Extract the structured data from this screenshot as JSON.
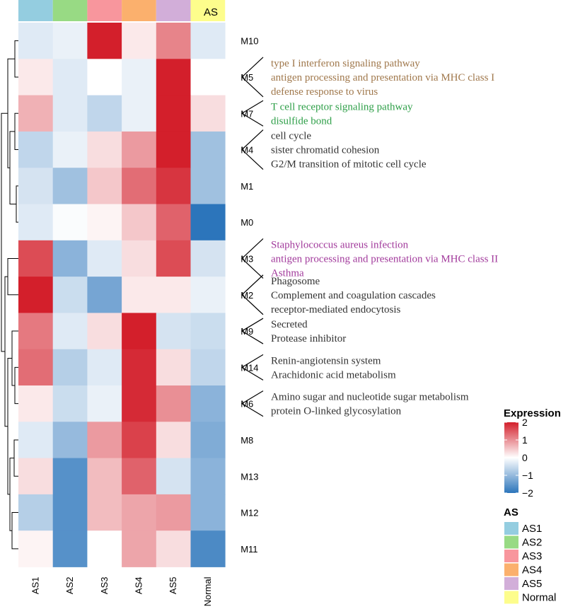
{
  "chart_data": {
    "type": "heatmap",
    "columns": [
      "AS1",
      "AS2",
      "AS3",
      "AS4",
      "AS5",
      "Normal"
    ],
    "rows": [
      "M10",
      "M5",
      "M7",
      "M4",
      "M1",
      "M0",
      "M3",
      "M2",
      "M9",
      "M14",
      "M6",
      "M8",
      "M13",
      "M12",
      "M11"
    ],
    "values": [
      [
        -0.3,
        -0.2,
        2.0,
        0.2,
        1.1,
        -0.3
      ],
      [
        0.2,
        -0.3,
        0.0,
        -0.2,
        2.1,
        0.0
      ],
      [
        0.7,
        -0.3,
        -0.6,
        -0.2,
        2.1,
        0.3
      ],
      [
        -0.6,
        -0.2,
        0.3,
        0.9,
        2.1,
        -0.9
      ],
      [
        -0.4,
        -0.9,
        0.5,
        1.3,
        1.8,
        -0.9
      ],
      [
        -0.3,
        -0.05,
        0.1,
        0.5,
        1.4,
        -2.1
      ],
      [
        1.6,
        -1.1,
        -0.3,
        0.3,
        1.6,
        -0.4
      ],
      [
        2.0,
        -0.5,
        -1.3,
        0.2,
        0.2,
        -0.2
      ],
      [
        1.2,
        -0.3,
        0.3,
        2.0,
        -0.4,
        -0.5
      ],
      [
        1.3,
        -0.7,
        -0.3,
        1.9,
        0.3,
        -0.6
      ],
      [
        0.2,
        -0.5,
        -0.2,
        1.9,
        1.0,
        -1.1
      ],
      [
        -0.3,
        -1.0,
        0.9,
        1.7,
        0.3,
        -1.2
      ],
      [
        0.3,
        -1.6,
        0.6,
        1.4,
        -0.4,
        -1.1
      ],
      [
        -0.7,
        -1.6,
        0.6,
        0.8,
        0.9,
        -1.1
      ],
      [
        0.1,
        -1.6,
        0.0,
        0.8,
        0.3,
        -1.7
      ]
    ],
    "legend": {
      "title": "Expression",
      "range": [
        -2,
        2
      ],
      "ticks": [
        {
          "value": 2,
          "label": "2"
        },
        {
          "value": 1,
          "label": "1"
        },
        {
          "value": 0,
          "label": "0"
        },
        {
          "value": -1,
          "label": "−1"
        },
        {
          "value": -2,
          "label": "−2"
        }
      ]
    },
    "annotation": {
      "title": "AS",
      "groups": [
        {
          "label": "AS1",
          "color": "#94cde0"
        },
        {
          "label": "AS2",
          "color": "#98da84"
        },
        {
          "label": "AS3",
          "color": "#f8969d"
        },
        {
          "label": "AS4",
          "color": "#fbb06d"
        },
        {
          "label": "AS5",
          "color": "#d2aed9"
        },
        {
          "label": "Normal",
          "color": "#fdfd8c"
        }
      ]
    },
    "module_terms": [
      {
        "module": "M5",
        "color": "#a0784c",
        "terms": [
          "type I interferon signaling pathway",
          "antigen processing and presentation via MHC class I",
          "defense response to virus"
        ]
      },
      {
        "module": "M7",
        "color": "#2e9f48",
        "terms": [
          "T cell receptor signaling pathway",
          "disulfide bond"
        ]
      },
      {
        "module": "M4",
        "color": "#333333",
        "terms": [
          "cell cycle",
          "sister chromatid cohesion",
          "G2/M transition of mitotic cell cycle"
        ]
      },
      {
        "module": "M3",
        "color": "#a23b9c",
        "terms": [
          "Staphylococcus aureus infection",
          "antigen processing and presentation via MHC class II",
          "Asthma"
        ]
      },
      {
        "module": "M2",
        "color": "#333333",
        "terms": [
          "Phagosome",
          "Complement and coagulation cascades",
          "receptor-mediated endocytosis"
        ]
      },
      {
        "module": "M9",
        "color": "#333333",
        "terms": [
          "Secreted",
          "Protease inhibitor"
        ]
      },
      {
        "module": "M14",
        "color": "#333333",
        "terms": [
          "Renin-angiotensin system",
          "Arachidonic acid metabolism"
        ]
      },
      {
        "module": "M6",
        "color": "#333333",
        "terms": [
          "Amino sugar and nucleotide sugar metabolism",
          "protein O-linked glycosylation"
        ]
      }
    ],
    "scale_colors": {
      "low": "#2c75bb",
      "mid": "#ffffff",
      "high": "#d31f2b"
    }
  }
}
